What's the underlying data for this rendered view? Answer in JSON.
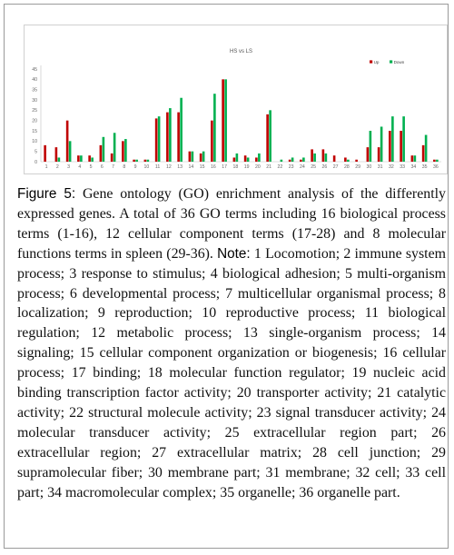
{
  "chart_data": {
    "type": "bar",
    "title": "HS vs LS",
    "categories": [
      "1",
      "2",
      "3",
      "4",
      "5",
      "6",
      "7",
      "8",
      "9",
      "10",
      "11",
      "12",
      "13",
      "14",
      "15",
      "16",
      "17",
      "18",
      "19",
      "20",
      "21",
      "22",
      "23",
      "24",
      "25",
      "26",
      "27",
      "28",
      "29",
      "30",
      "31",
      "32",
      "33",
      "34",
      "35",
      "36"
    ],
    "series": [
      {
        "name": "Up",
        "color": "#c00000",
        "values": [
          8,
          7,
          20,
          3,
          3,
          8,
          4,
          10,
          1,
          1,
          21,
          24,
          24,
          5,
          4,
          20,
          40,
          2,
          3,
          2,
          23,
          0,
          1,
          1,
          6,
          6,
          3,
          2,
          1,
          7,
          7,
          15,
          15,
          3,
          8,
          1
        ]
      },
      {
        "name": "Down",
        "color": "#00b050",
        "values": [
          0,
          2,
          10,
          3,
          2,
          12,
          14,
          11,
          1,
          1,
          22,
          26,
          31,
          5,
          5,
          33,
          40,
          4,
          2,
          4,
          25,
          1,
          2,
          2,
          4,
          4,
          0,
          1,
          0,
          15,
          17,
          22,
          22,
          3,
          13,
          1
        ]
      }
    ],
    "ylim": [
      0,
      45
    ],
    "yticks": [
      0,
      5,
      10,
      15,
      20,
      25,
      30,
      35,
      40,
      45
    ],
    "legend_position": "top-right",
    "grid": false
  },
  "caption": {
    "label": "Figure 5:",
    "text": " Gene ontology (GO) enrichment analysis of the differently expressed genes. A total of 36 GO terms including 16 biological process terms (1-16), 12 cellular component terms (17-28) and 8 molecular functions terms in spleen (29-36).",
    "note_label": "Note:",
    "note_text": " 1 Locomotion; 2 immune system process; 3 response to stimulus; 4 biological adhesion; 5 multi-organism process; 6 developmental process; 7 multicellular organismal process; 8 localization; 9 reproduction; 10 reproductive process; 11 biological regulation; 12 metabolic process; 13 single-organism process; 14 signaling; 15 cellular component organization or biogenesis; 16 cellular process; 17 binding; 18 molecular function regulator; 19 nucleic acid binding transcription factor activity; 20 transporter activity; 21 catalytic activity; 22 structural molecule activity; 23 signal transducer activity; 24 molecular transducer activity; 25 extracellular region part; 26 extracellular region; 27 extracellular matrix; 28 cell junction; 29 supramolecular fiber; 30 membrane part; 31 membrane; 32 cell; 33 cell part; 34 macromolecular complex; 35 organelle; 36 organelle part."
  }
}
